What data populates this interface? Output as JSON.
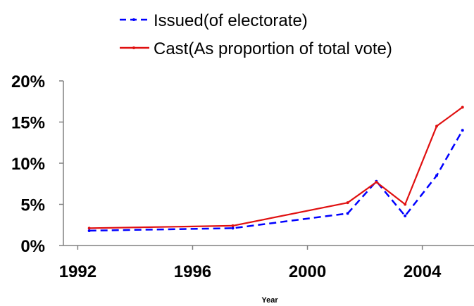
{
  "chart_data": {
    "type": "line",
    "xlabel": "Year",
    "ylabel": "",
    "xlim": [
      1991.5,
      2005.8
    ],
    "ylim": [
      0,
      20
    ],
    "x_ticks": [
      1992,
      1996,
      2000,
      2004
    ],
    "x_tick_labels": [
      "1992",
      "1996",
      "2000",
      "2004"
    ],
    "y_ticks": [
      0,
      5,
      10,
      15,
      20
    ],
    "y_tick_labels": [
      "0%",
      "5%",
      "10%",
      "15%",
      "20%"
    ],
    "grid": false,
    "legend_position": "top-center",
    "series": [
      {
        "name": "Issued(of electorate)",
        "color": "#0000ff",
        "line_style": "dashed",
        "x": [
          1992.4,
          1997.4,
          2001.4,
          2002.4,
          2003.4,
          2004.5,
          2005.4
        ],
        "y": [
          1.8,
          2.1,
          3.9,
          7.8,
          3.6,
          8.5,
          14.0
        ]
      },
      {
        "name": "Cast(As proportion of total vote)",
        "color": "#e01010",
        "line_style": "solid",
        "x": [
          1992.4,
          1997.4,
          2001.4,
          2002.4,
          2003.4,
          2004.5,
          2005.4
        ],
        "y": [
          2.1,
          2.4,
          5.2,
          7.7,
          5.0,
          14.5,
          16.8
        ]
      }
    ]
  }
}
